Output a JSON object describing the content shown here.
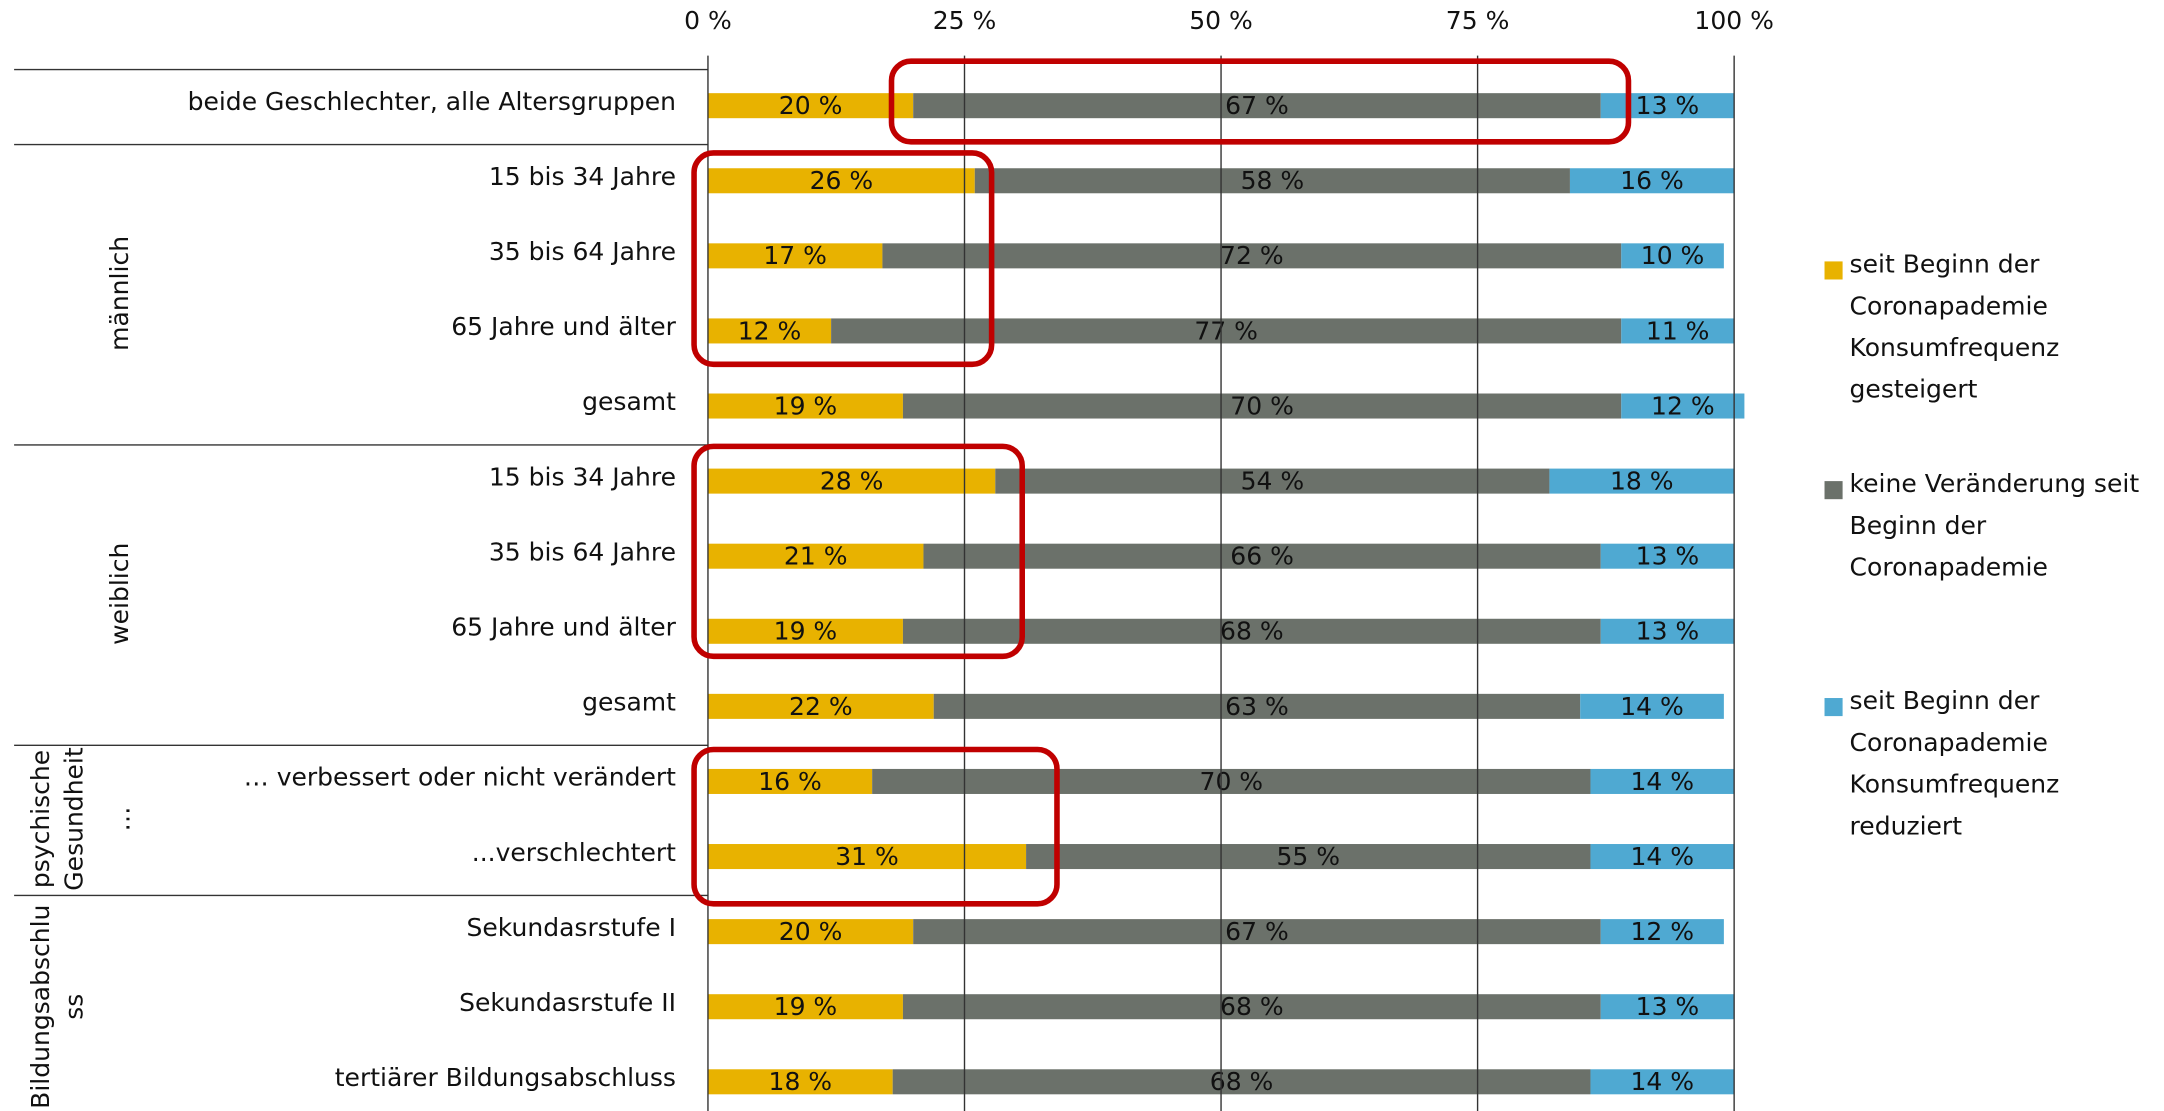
{
  "chart_data": {
    "type": "stacked_barh",
    "categories": [
      "beide Geschlechter, alle Altersgruppen",
      "15 bis 34 Jahre",
      "35 bis 64 Jahre",
      "65 Jahre und älter",
      "gesamt",
      "15 bis 34 Jahre",
      "35 bis 64 Jahre",
      "65 Jahre und älter",
      "gesamt",
      "… verbessert oder nicht verändert",
      "...verschlechtert",
      "Sekundasrstufe I",
      "Sekundasrstufe II",
      "tertiärer Bildungsabschluss"
    ],
    "groups": [
      {
        "lines": [
          "männlich"
        ],
        "start": 1,
        "end": 4
      },
      {
        "lines": [
          "weiblich"
        ],
        "start": 5,
        "end": 8
      },
      {
        "lines": [
          "psychische",
          "Gesundheit",
          "…"
        ],
        "start": 9,
        "end": 10
      },
      {
        "lines": [
          "Bildungsabschlu",
          "ss"
        ],
        "start": 11,
        "end": 13
      }
    ],
    "series": [
      {
        "name": "seit Beginn der Coronapademie Konsumfrequenz gesteigert",
        "color": "#e8b200",
        "values": [
          20,
          26,
          17,
          12,
          19,
          28,
          21,
          19,
          22,
          16,
          31,
          20,
          19,
          18
        ],
        "value_labels": [
          "20 %",
          "26 %",
          "17 %",
          "12 %",
          "19 %",
          "28 %",
          "21 %",
          "19 %",
          "22 %",
          "16 %",
          "31 %",
          "20 %",
          "19 %",
          "18 %"
        ]
      },
      {
        "name": "keine Veränderung seit Beginn der Coronapademie",
        "color": "#6b716a",
        "values": [
          67,
          58,
          72,
          77,
          70,
          54,
          66,
          68,
          63,
          70,
          55,
          67,
          68,
          68
        ],
        "value_labels": [
          "67 %",
          "58 %",
          "72 %",
          "77 %",
          "70 %",
          "54 %",
          "66 %",
          "68 %",
          "63 %",
          "70 %",
          "55 %",
          "67 %",
          "68 %",
          "68 %"
        ]
      },
      {
        "name": "seit Beginn der Coronapademie Konsumfrequenz reduziert",
        "color": "#4fa9d2",
        "values": [
          13,
          16,
          10,
          11,
          12,
          18,
          13,
          13,
          14,
          14,
          14,
          12,
          13,
          14
        ],
        "value_labels": [
          "13 %",
          "16 %",
          "10 %",
          "11 %",
          "12 %",
          "18 %",
          "13 %",
          "13 %",
          "14 %",
          "14 %",
          "14 %",
          "12 %",
          "13 %",
          "14 %"
        ]
      }
    ],
    "xlim": [
      0,
      100
    ],
    "xticks": [
      {
        "value": 0,
        "label": "0 %"
      },
      {
        "value": 25,
        "label": "25 %"
      },
      {
        "value": 50,
        "label": "50 %"
      },
      {
        "value": 75,
        "label": "75 %"
      },
      {
        "value": 100,
        "label": "100 %"
      }
    ],
    "grid": true,
    "legend": "right"
  }
}
